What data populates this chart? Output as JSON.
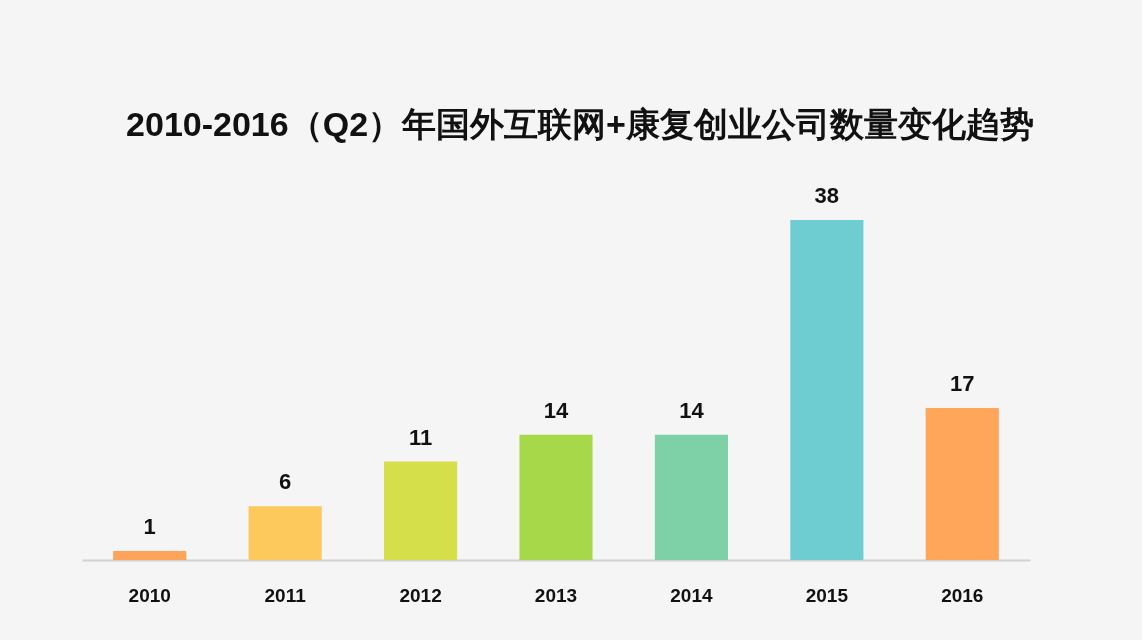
{
  "chart_data": {
    "type": "bar",
    "title": "2010-2016（Q2）年国外互联网+康复创业公司数量变化趋势",
    "categories": [
      "2010",
      "2011",
      "2012",
      "2013",
      "2014",
      "2015",
      "2016"
    ],
    "values": [
      1,
      6,
      11,
      14,
      14,
      38,
      17
    ],
    "colors": [
      "#fea35a",
      "#fdc85c",
      "#d5df4a",
      "#a6d84a",
      "#7ed1a6",
      "#6dcdd1",
      "#ffa65a"
    ],
    "data_labels": true
  }
}
